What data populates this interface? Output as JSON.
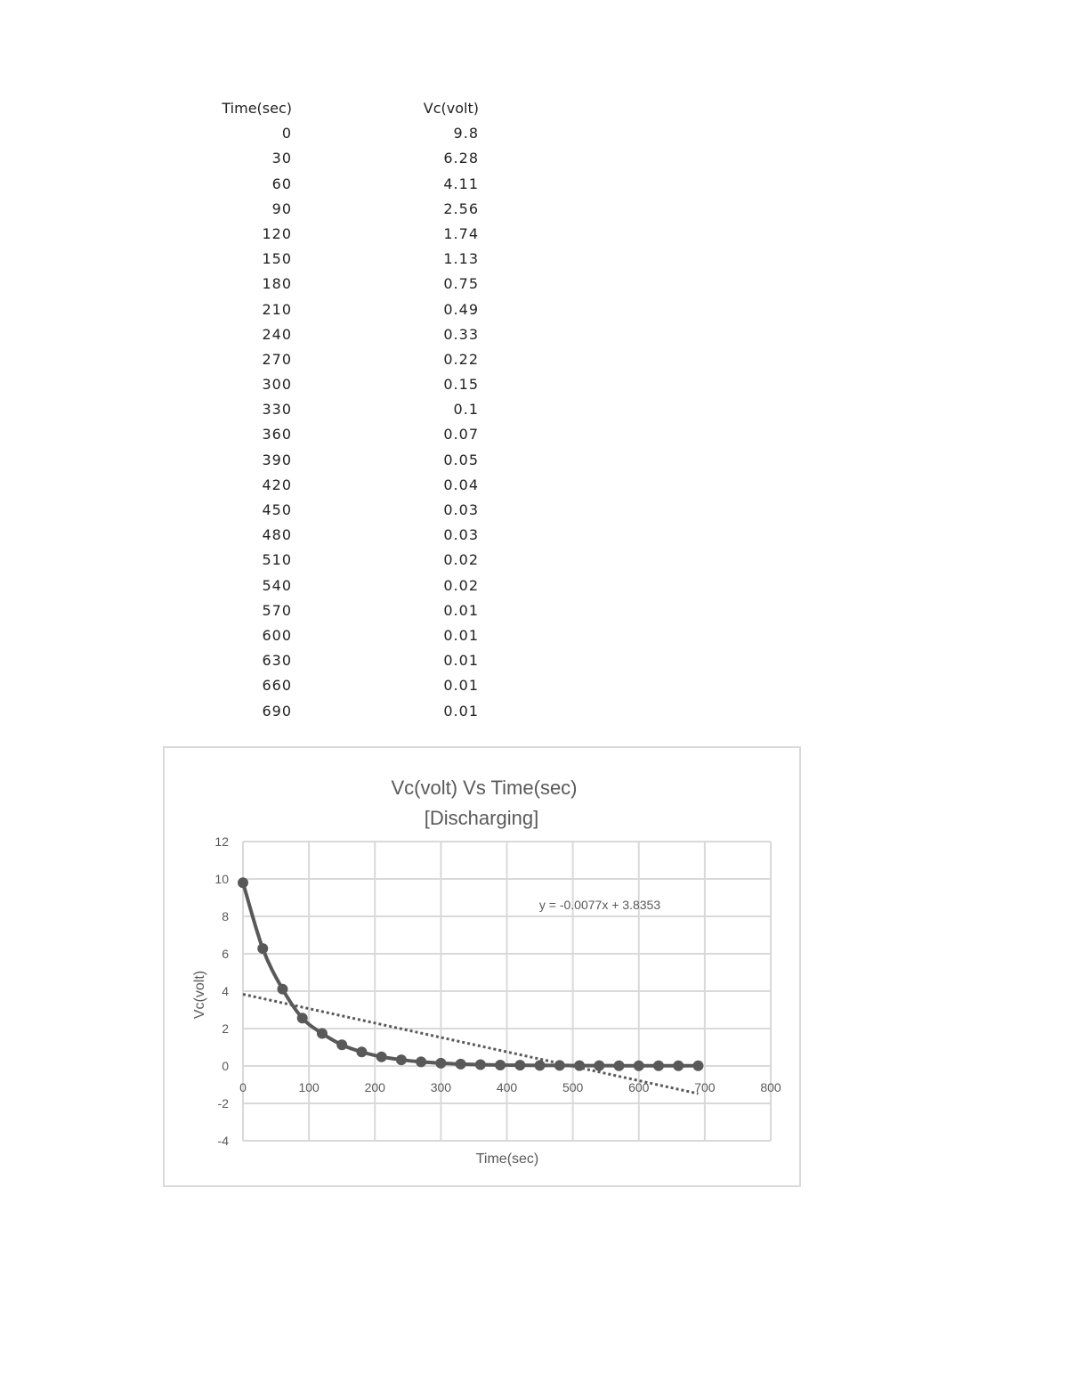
{
  "table": {
    "headers": [
      "Time(sec)",
      "Vc(volt)"
    ],
    "rows": [
      [
        "0",
        "9.8"
      ],
      [
        "30",
        "6.28"
      ],
      [
        "60",
        "4.11"
      ],
      [
        "90",
        "2.56"
      ],
      [
        "120",
        "1.74"
      ],
      [
        "150",
        "1.13"
      ],
      [
        "180",
        "0.75"
      ],
      [
        "210",
        "0.49"
      ],
      [
        "240",
        "0.33"
      ],
      [
        "270",
        "0.22"
      ],
      [
        "300",
        "0.15"
      ],
      [
        "330",
        "0.1"
      ],
      [
        "360",
        "0.07"
      ],
      [
        "390",
        "0.05"
      ],
      [
        "420",
        "0.04"
      ],
      [
        "450",
        "0.03"
      ],
      [
        "480",
        "0.03"
      ],
      [
        "510",
        "0.02"
      ],
      [
        "540",
        "0.02"
      ],
      [
        "570",
        "0.01"
      ],
      [
        "600",
        "0.01"
      ],
      [
        "630",
        "0.01"
      ],
      [
        "660",
        "0.01"
      ],
      [
        "690",
        "0.01"
      ]
    ]
  },
  "chart_data": {
    "type": "scatter",
    "title": "Vc(volt) Vs Time(sec)",
    "subtitle": "[Discharging]",
    "xlabel": "Time(sec)",
    "ylabel": "Vc(volt)",
    "xlim": [
      0,
      800
    ],
    "ylim": [
      -4,
      12
    ],
    "xticks": [
      0,
      100,
      200,
      300,
      400,
      500,
      600,
      700,
      800
    ],
    "yticks": [
      -4,
      -2,
      0,
      2,
      4,
      6,
      8,
      10,
      12
    ],
    "grid": true,
    "legend": "none",
    "series": [
      {
        "x": [
          0,
          30,
          60,
          90,
          120,
          150,
          180,
          210,
          240,
          270,
          300,
          330,
          360,
          390,
          420,
          450,
          480,
          510,
          540,
          570,
          600,
          630,
          660,
          690
        ],
        "y": [
          9.8,
          6.28,
          4.11,
          2.56,
          1.74,
          1.13,
          0.75,
          0.49,
          0.33,
          0.22,
          0.15,
          0.1,
          0.07,
          0.05,
          0.04,
          0.03,
          0.03,
          0.02,
          0.02,
          0.01,
          0.01,
          0.01,
          0.01,
          0.01
        ],
        "style": "smooth-line-with-markers",
        "color": "#595959"
      }
    ],
    "trendline": {
      "type": "linear",
      "slope": -0.0077,
      "intercept": 3.8353,
      "x_range": [
        0,
        690
      ],
      "label": "y = -0.0077x + 3.8353",
      "style": "dotted",
      "color": "#595959"
    }
  }
}
